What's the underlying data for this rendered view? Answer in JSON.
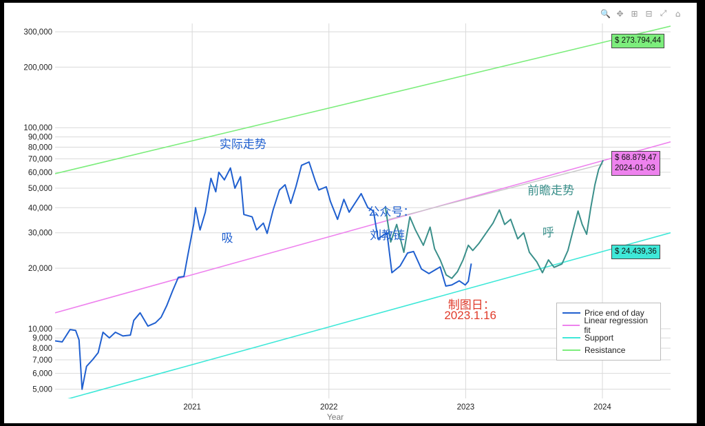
{
  "chart_data": {
    "type": "line",
    "title": "",
    "xlabel": "Year",
    "ylabel": "",
    "y_scale": "log",
    "ylim": [
      4500,
      330000
    ],
    "xlim": [
      "2020-01-01",
      "2024-07-01"
    ],
    "x_ticks": [
      {
        "label": "2021",
        "date": "2021-01-01"
      },
      {
        "label": "2022",
        "date": "2022-01-01"
      },
      {
        "label": "2023",
        "date": "2023-01-01"
      },
      {
        "label": "2024",
        "date": "2024-01-01"
      }
    ],
    "y_ticks": [
      {
        "label": "5,000",
        "value": 5000
      },
      {
        "label": "6,000",
        "value": 6000
      },
      {
        "label": "7,000",
        "value": 7000
      },
      {
        "label": "8,000",
        "value": 8000
      },
      {
        "label": "9,000",
        "value": 9000
      },
      {
        "label": "10,000",
        "value": 10000
      },
      {
        "label": "20,000",
        "value": 20000
      },
      {
        "label": "30,000",
        "value": 30000
      },
      {
        "label": "40,000",
        "value": 40000
      },
      {
        "label": "50,000",
        "value": 50000
      },
      {
        "label": "60,000",
        "value": 60000
      },
      {
        "label": "70,000",
        "value": 70000
      },
      {
        "label": "80,000",
        "value": 80000
      },
      {
        "label": "90,000",
        "value": 90000
      },
      {
        "label": "100,000",
        "value": 100000
      },
      {
        "label": "200,000",
        "value": 200000
      },
      {
        "label": "300,000",
        "value": 300000
      }
    ],
    "grid": true,
    "legend_position": "bottom-right",
    "series": [
      {
        "name": "Price end of day",
        "color": "#1f5fcf",
        "points": [
          [
            "2020-01-01",
            8700
          ],
          [
            "2020-01-20",
            8600
          ],
          [
            "2020-02-10",
            9900
          ],
          [
            "2020-02-25",
            9800
          ],
          [
            "2020-03-05",
            8800
          ],
          [
            "2020-03-13",
            5000
          ],
          [
            "2020-03-25",
            6500
          ],
          [
            "2020-04-10",
            7000
          ],
          [
            "2020-04-25",
            7600
          ],
          [
            "2020-05-08",
            9600
          ],
          [
            "2020-05-25",
            9000
          ],
          [
            "2020-06-10",
            9600
          ],
          [
            "2020-06-30",
            9200
          ],
          [
            "2020-07-20",
            9300
          ],
          [
            "2020-07-29",
            11000
          ],
          [
            "2020-08-15",
            12000
          ],
          [
            "2020-09-05",
            10300
          ],
          [
            "2020-09-25",
            10700
          ],
          [
            "2020-10-10",
            11400
          ],
          [
            "2020-10-25",
            13000
          ],
          [
            "2020-11-10",
            15500
          ],
          [
            "2020-11-25",
            18000
          ],
          [
            "2020-12-10",
            18200
          ],
          [
            "2020-12-20",
            23000
          ],
          [
            "2021-01-05",
            33000
          ],
          [
            "2021-01-10",
            40000
          ],
          [
            "2021-01-22",
            31000
          ],
          [
            "2021-02-05",
            38000
          ],
          [
            "2021-02-20",
            56000
          ],
          [
            "2021-03-05",
            48000
          ],
          [
            "2021-03-13",
            60000
          ],
          [
            "2021-03-28",
            55000
          ],
          [
            "2021-04-13",
            63000
          ],
          [
            "2021-04-25",
            50000
          ],
          [
            "2021-05-10",
            57000
          ],
          [
            "2021-05-19",
            37000
          ],
          [
            "2021-06-10",
            36000
          ],
          [
            "2021-06-22",
            31000
          ],
          [
            "2021-07-10",
            33500
          ],
          [
            "2021-07-20",
            29800
          ],
          [
            "2021-08-05",
            39000
          ],
          [
            "2021-08-22",
            49000
          ],
          [
            "2021-09-06",
            52000
          ],
          [
            "2021-09-21",
            42000
          ],
          [
            "2021-10-05",
            51000
          ],
          [
            "2021-10-20",
            65000
          ],
          [
            "2021-11-09",
            67500
          ],
          [
            "2021-11-26",
            54000
          ],
          [
            "2021-12-05",
            49000
          ],
          [
            "2021-12-25",
            50800
          ],
          [
            "2022-01-05",
            43000
          ],
          [
            "2022-01-24",
            35000
          ],
          [
            "2022-02-10",
            44000
          ],
          [
            "2022-02-24",
            38000
          ],
          [
            "2022-03-28",
            47000
          ],
          [
            "2022-04-15",
            40000
          ],
          [
            "2022-04-30",
            38500
          ],
          [
            "2022-05-12",
            28000
          ],
          [
            "2022-06-05",
            30000
          ],
          [
            "2022-06-18",
            19000
          ],
          [
            "2022-07-10",
            20500
          ],
          [
            "2022-07-30",
            23800
          ],
          [
            "2022-08-15",
            24200
          ],
          [
            "2022-09-05",
            19800
          ],
          [
            "2022-09-25",
            18800
          ],
          [
            "2022-10-25",
            20300
          ],
          [
            "2022-11-09",
            16300
          ],
          [
            "2022-11-25",
            16500
          ],
          [
            "2022-12-15",
            17300
          ],
          [
            "2022-12-31",
            16500
          ],
          [
            "2023-01-08",
            17200
          ],
          [
            "2023-01-16",
            21100
          ]
        ]
      },
      {
        "name": "Linear regression fit",
        "color": "#ee82ee",
        "points": [
          [
            "2020-01-01",
            12000
          ],
          [
            "2024-07-01",
            85000
          ]
        ]
      },
      {
        "name": "Support",
        "color": "#3ee8d8",
        "points": [
          [
            "2020-01-01",
            4300
          ],
          [
            "2024-07-01",
            30000
          ]
        ]
      },
      {
        "name": "Resistance",
        "color": "#7ced7c",
        "points": [
          [
            "2020-01-01",
            59000
          ],
          [
            "2024-07-01",
            320000
          ]
        ]
      },
      {
        "name": "",
        "color": "#3a8f8a",
        "points": [
          [
            "2022-06-01",
            40000
          ],
          [
            "2022-06-15",
            27000
          ],
          [
            "2022-07-01",
            33000
          ],
          [
            "2022-07-20",
            24000
          ],
          [
            "2022-08-05",
            36000
          ],
          [
            "2022-08-20",
            31000
          ],
          [
            "2022-09-10",
            26000
          ],
          [
            "2022-09-28",
            32000
          ],
          [
            "2022-10-10",
            25000
          ],
          [
            "2022-10-25",
            22000
          ],
          [
            "2022-11-10",
            18500
          ],
          [
            "2022-11-25",
            17800
          ],
          [
            "2022-12-10",
            19200
          ],
          [
            "2022-12-25",
            22000
          ],
          [
            "2023-01-08",
            26000
          ],
          [
            "2023-01-20",
            24500
          ],
          [
            "2023-02-05",
            26500
          ],
          [
            "2023-02-25",
            30000
          ],
          [
            "2023-03-15",
            33500
          ],
          [
            "2023-04-01",
            39000
          ],
          [
            "2023-04-15",
            33000
          ],
          [
            "2023-05-01",
            35000
          ],
          [
            "2023-05-20",
            28000
          ],
          [
            "2023-06-05",
            30000
          ],
          [
            "2023-06-20",
            24000
          ],
          [
            "2023-07-10",
            21500
          ],
          [
            "2023-07-25",
            19000
          ],
          [
            "2023-08-10",
            22000
          ],
          [
            "2023-08-25",
            20200
          ],
          [
            "2023-09-15",
            21000
          ],
          [
            "2023-10-01",
            24500
          ],
          [
            "2023-10-15",
            31000
          ],
          [
            "2023-10-28",
            38500
          ],
          [
            "2023-11-08",
            33000
          ],
          [
            "2023-11-20",
            29500
          ],
          [
            "2023-12-01",
            40000
          ],
          [
            "2023-12-12",
            52000
          ],
          [
            "2023-12-22",
            62000
          ],
          [
            "2024-01-03",
            68879
          ]
        ]
      },
      {
        "name": "",
        "color": "#c8c8c8",
        "points": [
          [
            "2022-06-10",
            35000
          ],
          [
            "2024-01-03",
            66000
          ]
        ]
      }
    ],
    "annotations": [
      {
        "text": "实际走势",
        "x": "2021-03-15",
        "y": 85000,
        "color": "#1f5fcf"
      },
      {
        "text": "吸",
        "x": "2021-03-20",
        "y": 29000,
        "color": "#1f5fcf"
      },
      {
        "text": "公众号：",
        "x": "2022-04-15",
        "y": 39000,
        "color": "#1f5fcf"
      },
      {
        "text": "刘教链",
        "x": "2022-04-20",
        "y": 30000,
        "color": "#1f5fcf"
      },
      {
        "text": "前瞻走势",
        "x": "2023-06-15",
        "y": 50000,
        "color": "#3a8f8a"
      },
      {
        "text": "呼",
        "x": "2023-07-25",
        "y": 31000,
        "color": "#3a8f8a"
      },
      {
        "text": "制图日：",
        "x": "2022-11-15",
        "y": 13500,
        "color": "#e03a2a"
      },
      {
        "text": "2023.1.16",
        "x": "2022-11-05",
        "y": 11500,
        "color": "#e03a2a"
      }
    ],
    "price_tags": [
      {
        "text": "$ 273.794,44",
        "y": 273794,
        "color": "#7ced7c"
      },
      {
        "text": "$ 68.879,47",
        "date_text": "2024-01-03",
        "y": 68879,
        "color": "#ee82ee"
      },
      {
        "text": "$ 24.439,36",
        "y": 24439,
        "color": "#3ee8d8"
      }
    ]
  },
  "toolbar_icons": [
    "zoom-icon",
    "pan-icon",
    "zoom-in-icon",
    "zoom-out-icon",
    "autoscale-icon",
    "home-icon"
  ]
}
